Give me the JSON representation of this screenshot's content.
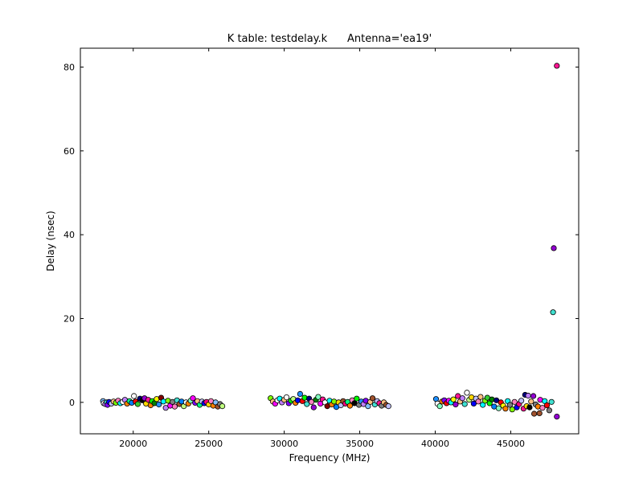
{
  "chart_data": {
    "type": "scatter",
    "title": "K table: testdelay.k      Antenna='ea19'",
    "xlabel": "Frequency (MHz)",
    "ylabel": "Delay (nsec)",
    "xlim": [
      16500,
      49500
    ],
    "ylim": [
      -7.5,
      84.5
    ],
    "xticks": [
      20000,
      25000,
      30000,
      35000,
      40000,
      45000
    ],
    "yticks": [
      0,
      20,
      40,
      60,
      80
    ],
    "xtick_labels": [
      "20000",
      "25000",
      "30000",
      "35000",
      "40000",
      "45000"
    ],
    "ytick_labels": [
      "0",
      "20",
      "40",
      "60",
      "80"
    ],
    "grid": false,
    "legend": "none",
    "marker_edge_color": "#000000",
    "colors": [
      "#00ffff",
      "#ff00ff",
      "#ffff00",
      "#ff0000",
      "#00ff00",
      "#0000ff",
      "#ff8000",
      "#8000ff",
      "#00ff80",
      "#ff0080",
      "#80ff00",
      "#0080ff",
      "#808080",
      "#800000",
      "#008000",
      "#000080",
      "#ffffff",
      "#000000",
      "#ff80c0",
      "#c0c0ff",
      "#ffc080",
      "#80c0ff",
      "#c080ff",
      "#80ffc0",
      "#c0ff80",
      "#40e0d0",
      "#a0522d",
      "#9400d3",
      "#ff1493",
      "#1e90ff",
      "#32cd32",
      "#ffd700"
    ],
    "points": [
      {
        "x": 18000,
        "y": 0.3,
        "color": "#80c0ff"
      },
      {
        "x": 18050,
        "y": -0.2,
        "color": "#ffffff"
      },
      {
        "x": 18150,
        "y": -0.4,
        "color": "#c080ff"
      },
      {
        "x": 18250,
        "y": 0.0,
        "color": "#40e0d0"
      },
      {
        "x": 18300,
        "y": -0.6,
        "color": "#8000ff"
      },
      {
        "x": 18400,
        "y": 0.1,
        "color": "#0000ff"
      },
      {
        "x": 18550,
        "y": -0.3,
        "color": "#c0c0ff"
      },
      {
        "x": 18700,
        "y": 0.2,
        "color": "#ffc080"
      },
      {
        "x": 18850,
        "y": -0.1,
        "color": "#80ff00"
      },
      {
        "x": 19000,
        "y": 0.4,
        "color": "#ff80c0"
      },
      {
        "x": 19150,
        "y": -0.2,
        "color": "#00ffff"
      },
      {
        "x": 19300,
        "y": 0.1,
        "color": "#ffffff"
      },
      {
        "x": 19450,
        "y": 0.6,
        "color": "#c080ff"
      },
      {
        "x": 19600,
        "y": -0.3,
        "color": "#ff8000"
      },
      {
        "x": 19750,
        "y": 0.3,
        "color": "#00ff80"
      },
      {
        "x": 19900,
        "y": -0.1,
        "color": "#0080ff"
      },
      {
        "x": 20050,
        "y": 1.5,
        "color": "#ffffff"
      },
      {
        "x": 20150,
        "y": 0.2,
        "color": "#ff0000"
      },
      {
        "x": 20300,
        "y": -0.4,
        "color": "#32cd32"
      },
      {
        "x": 20450,
        "y": 0.9,
        "color": "#000080"
      },
      {
        "x": 20600,
        "y": 0.5,
        "color": "#000000"
      },
      {
        "x": 20750,
        "y": 1.0,
        "color": "#9400d3"
      },
      {
        "x": 20850,
        "y": -0.3,
        "color": "#ffd700"
      },
      {
        "x": 21000,
        "y": 0.6,
        "color": "#ff1493"
      },
      {
        "x": 21150,
        "y": -0.7,
        "color": "#ff8000"
      },
      {
        "x": 21250,
        "y": 0.3,
        "color": "#00ff00"
      },
      {
        "x": 21400,
        "y": -0.2,
        "color": "#008000"
      },
      {
        "x": 21550,
        "y": 0.8,
        "color": "#ffff00"
      },
      {
        "x": 21700,
        "y": -0.5,
        "color": "#1e90ff"
      },
      {
        "x": 21850,
        "y": 1.1,
        "color": "#800000"
      },
      {
        "x": 22000,
        "y": 0.2,
        "color": "#00ffff"
      },
      {
        "x": 22150,
        "y": -1.3,
        "color": "#c080ff"
      },
      {
        "x": 22300,
        "y": 0.4,
        "color": "#80ff00"
      },
      {
        "x": 22450,
        "y": -0.8,
        "color": "#ff00ff"
      },
      {
        "x": 22600,
        "y": 0.1,
        "color": "#808080"
      },
      {
        "x": 22750,
        "y": -1.0,
        "color": "#ff80c0"
      },
      {
        "x": 22900,
        "y": 0.5,
        "color": "#40e0d0"
      },
      {
        "x": 23050,
        "y": -0.4,
        "color": "#a0522d"
      },
      {
        "x": 23200,
        "y": 0.2,
        "color": "#0080ff"
      },
      {
        "x": 23350,
        "y": -0.9,
        "color": "#c0ff80"
      },
      {
        "x": 23500,
        "y": 0.0,
        "color": "#ffffff"
      },
      {
        "x": 23650,
        "y": -0.3,
        "color": "#ff8000"
      },
      {
        "x": 23800,
        "y": 0.4,
        "color": "#80ffc0"
      },
      {
        "x": 23950,
        "y": 1.0,
        "color": "#ff00ff"
      },
      {
        "x": 24100,
        "y": -0.1,
        "color": "#8000ff"
      },
      {
        "x": 24250,
        "y": 0.3,
        "color": "#ffc080"
      },
      {
        "x": 24400,
        "y": -0.6,
        "color": "#00ff80"
      },
      {
        "x": 24550,
        "y": 0.2,
        "color": "#c0c0ff"
      },
      {
        "x": 24700,
        "y": -0.2,
        "color": "#0000ff"
      },
      {
        "x": 24850,
        "y": 0.1,
        "color": "#ff0080"
      },
      {
        "x": 25000,
        "y": -0.5,
        "color": "#ffd700"
      },
      {
        "x": 25150,
        "y": 0.3,
        "color": "#ff80c0"
      },
      {
        "x": 25300,
        "y": -0.8,
        "color": "#ff8000"
      },
      {
        "x": 25450,
        "y": 0.0,
        "color": "#80c0ff"
      },
      {
        "x": 25600,
        "y": -1.0,
        "color": "#a0522d"
      },
      {
        "x": 25750,
        "y": -0.4,
        "color": "#808080"
      },
      {
        "x": 25900,
        "y": -0.9,
        "color": "#c0ff80"
      },
      {
        "x": 29100,
        "y": 1.0,
        "color": "#80ff00"
      },
      {
        "x": 29250,
        "y": 0.2,
        "color": "#ffc080"
      },
      {
        "x": 29400,
        "y": -0.3,
        "color": "#ff00ff"
      },
      {
        "x": 29550,
        "y": 0.5,
        "color": "#ffffff"
      },
      {
        "x": 29700,
        "y": 0.9,
        "color": "#00ffff"
      },
      {
        "x": 29850,
        "y": 0.0,
        "color": "#c080ff"
      },
      {
        "x": 30000,
        "y": 0.6,
        "color": "#ffc080"
      },
      {
        "x": 30150,
        "y": 1.2,
        "color": "#ffffff"
      },
      {
        "x": 30300,
        "y": -0.2,
        "color": "#8000ff"
      },
      {
        "x": 30450,
        "y": 0.4,
        "color": "#00ff00"
      },
      {
        "x": 30600,
        "y": 0.8,
        "color": "#c0ff80"
      },
      {
        "x": 30750,
        "y": -0.1,
        "color": "#ff8000"
      },
      {
        "x": 30900,
        "y": 0.5,
        "color": "#0000ff"
      },
      {
        "x": 31050,
        "y": 2.0,
        "color": "#1e90ff"
      },
      {
        "x": 31200,
        "y": 0.3,
        "color": "#ff0000"
      },
      {
        "x": 31350,
        "y": 1.1,
        "color": "#00ff00"
      },
      {
        "x": 31500,
        "y": -0.4,
        "color": "#40e0d0"
      },
      {
        "x": 31650,
        "y": 0.9,
        "color": "#000080"
      },
      {
        "x": 31800,
        "y": 0.1,
        "color": "#ff80c0"
      },
      {
        "x": 31950,
        "y": -1.2,
        "color": "#9400d3"
      },
      {
        "x": 32100,
        "y": 0.6,
        "color": "#008000"
      },
      {
        "x": 32250,
        "y": 1.3,
        "color": "#80ffc0"
      },
      {
        "x": 32400,
        "y": -0.3,
        "color": "#ff00ff"
      },
      {
        "x": 32550,
        "y": 0.7,
        "color": "#ff1493"
      },
      {
        "x": 32700,
        "y": 0.0,
        "color": "#ffffff"
      },
      {
        "x": 32850,
        "y": -0.9,
        "color": "#800000"
      },
      {
        "x": 33000,
        "y": 0.4,
        "color": "#00ffff"
      },
      {
        "x": 33150,
        "y": -0.5,
        "color": "#ff8000"
      },
      {
        "x": 33300,
        "y": 0.2,
        "color": "#80ff00"
      },
      {
        "x": 33450,
        "y": -1.1,
        "color": "#0080ff"
      },
      {
        "x": 33600,
        "y": 0.0,
        "color": "#ffd700"
      },
      {
        "x": 33750,
        "y": -0.7,
        "color": "#c0c0ff"
      },
      {
        "x": 33900,
        "y": 0.3,
        "color": "#a0522d"
      },
      {
        "x": 34050,
        "y": -0.3,
        "color": "#ff0080"
      },
      {
        "x": 34200,
        "y": 0.1,
        "color": "#00ff80"
      },
      {
        "x": 34350,
        "y": -0.8,
        "color": "#ff8000"
      },
      {
        "x": 34500,
        "y": 0.5,
        "color": "#ff80c0"
      },
      {
        "x": 34650,
        "y": -0.2,
        "color": "#000000"
      },
      {
        "x": 34800,
        "y": 0.9,
        "color": "#00ff00"
      },
      {
        "x": 34950,
        "y": -0.6,
        "color": "#808080"
      },
      {
        "x": 35100,
        "y": 0.2,
        "color": "#1e90ff"
      },
      {
        "x": 35250,
        "y": -0.4,
        "color": "#c080ff"
      },
      {
        "x": 35400,
        "y": 0.4,
        "color": "#8000ff"
      },
      {
        "x": 35550,
        "y": -0.9,
        "color": "#80c0ff"
      },
      {
        "x": 35700,
        "y": 0.1,
        "color": "#ffc080"
      },
      {
        "x": 35850,
        "y": 1.0,
        "color": "#a0522d"
      },
      {
        "x": 36000,
        "y": -0.5,
        "color": "#40e0d0"
      },
      {
        "x": 36150,
        "y": 0.3,
        "color": "#c0c0ff"
      },
      {
        "x": 36300,
        "y": -0.2,
        "color": "#ff1493"
      },
      {
        "x": 36450,
        "y": -0.8,
        "color": "#808080"
      },
      {
        "x": 36600,
        "y": 0.0,
        "color": "#ffc080"
      },
      {
        "x": 36750,
        "y": -0.6,
        "color": "#a0522d"
      },
      {
        "x": 36900,
        "y": -0.9,
        "color": "#c0c0ff"
      },
      {
        "x": 40050,
        "y": 0.8,
        "color": "#1e90ff"
      },
      {
        "x": 40150,
        "y": -0.3,
        "color": "#ffffff"
      },
      {
        "x": 40300,
        "y": -0.9,
        "color": "#80ffc0"
      },
      {
        "x": 40450,
        "y": 0.2,
        "color": "#ff8000"
      },
      {
        "x": 40600,
        "y": 0.5,
        "color": "#8000ff"
      },
      {
        "x": 40750,
        "y": -0.2,
        "color": "#ff0000"
      },
      {
        "x": 40900,
        "y": 0.4,
        "color": "#ff00ff"
      },
      {
        "x": 41050,
        "y": 0.0,
        "color": "#00ffff"
      },
      {
        "x": 41200,
        "y": 0.7,
        "color": "#ffff00"
      },
      {
        "x": 41350,
        "y": -0.5,
        "color": "#9400d3"
      },
      {
        "x": 41500,
        "y": 1.5,
        "color": "#ff1493"
      },
      {
        "x": 41650,
        "y": 0.2,
        "color": "#ffc080"
      },
      {
        "x": 41800,
        "y": 1.0,
        "color": "#c080ff"
      },
      {
        "x": 41950,
        "y": -0.4,
        "color": "#40e0d0"
      },
      {
        "x": 42100,
        "y": 2.3,
        "color": "#ffffff"
      },
      {
        "x": 42250,
        "y": 0.6,
        "color": "#c0ff80"
      },
      {
        "x": 42400,
        "y": 1.2,
        "color": "#ffd700"
      },
      {
        "x": 42550,
        "y": -0.3,
        "color": "#0000ff"
      },
      {
        "x": 42700,
        "y": 0.9,
        "color": "#c0c0ff"
      },
      {
        "x": 42850,
        "y": 0.2,
        "color": "#ff80c0"
      },
      {
        "x": 43000,
        "y": 1.3,
        "color": "#ffc080"
      },
      {
        "x": 43150,
        "y": -0.6,
        "color": "#00ffff"
      },
      {
        "x": 43300,
        "y": 0.4,
        "color": "#80ff00"
      },
      {
        "x": 43450,
        "y": 1.1,
        "color": "#32cd32"
      },
      {
        "x": 43600,
        "y": -0.2,
        "color": "#00ff00"
      },
      {
        "x": 43750,
        "y": 0.7,
        "color": "#008000"
      },
      {
        "x": 43900,
        "y": -1.0,
        "color": "#0080ff"
      },
      {
        "x": 44050,
        "y": 0.5,
        "color": "#000080"
      },
      {
        "x": 44200,
        "y": -1.4,
        "color": "#80ffc0"
      },
      {
        "x": 44350,
        "y": 0.0,
        "color": "#ff0000"
      },
      {
        "x": 44500,
        "y": -0.8,
        "color": "#ffff00"
      },
      {
        "x": 44650,
        "y": -1.5,
        "color": "#ff8000"
      },
      {
        "x": 44800,
        "y": 0.3,
        "color": "#00ffff"
      },
      {
        "x": 44950,
        "y": -0.6,
        "color": "#808080"
      },
      {
        "x": 45100,
        "y": -1.7,
        "color": "#80ff00"
      },
      {
        "x": 45250,
        "y": 0.1,
        "color": "#ff80c0"
      },
      {
        "x": 45400,
        "y": -1.2,
        "color": "#0000ff"
      },
      {
        "x": 45550,
        "y": -0.4,
        "color": "#ff0080"
      },
      {
        "x": 45700,
        "y": 0.4,
        "color": "#c0c0ff"
      },
      {
        "x": 45850,
        "y": -1.5,
        "color": "#ff1493"
      },
      {
        "x": 45950,
        "y": 1.8,
        "color": "#000080"
      },
      {
        "x": 46050,
        "y": -0.9,
        "color": "#ffd700"
      },
      {
        "x": 46150,
        "y": 1.6,
        "color": "#c080ff"
      },
      {
        "x": 46250,
        "y": -1.2,
        "color": "#000000"
      },
      {
        "x": 46350,
        "y": 0.2,
        "color": "#ffc080"
      },
      {
        "x": 46500,
        "y": 1.5,
        "color": "#9400d3"
      },
      {
        "x": 46550,
        "y": -2.7,
        "color": "#a0522d"
      },
      {
        "x": 46650,
        "y": -0.5,
        "color": "#808080"
      },
      {
        "x": 46800,
        "y": -1.0,
        "color": "#ff8000"
      },
      {
        "x": 46900,
        "y": -2.6,
        "color": "#a0522d"
      },
      {
        "x": 46950,
        "y": 0.6,
        "color": "#ff00ff"
      },
      {
        "x": 47100,
        "y": -1.3,
        "color": "#ff80c0"
      },
      {
        "x": 47250,
        "y": 0.3,
        "color": "#00ffff"
      },
      {
        "x": 47400,
        "y": -0.7,
        "color": "#ff0000"
      },
      {
        "x": 47550,
        "y": -1.9,
        "color": "#808080"
      },
      {
        "x": 47700,
        "y": 0.1,
        "color": "#40e0d0"
      },
      {
        "x": 47800,
        "y": 21.5,
        "color": "#40e0d0"
      },
      {
        "x": 47850,
        "y": 36.8,
        "color": "#9400d3"
      },
      {
        "x": 48050,
        "y": 80.3,
        "color": "#ff1493"
      },
      {
        "x": 48050,
        "y": -3.4,
        "color": "#9400d3"
      }
    ]
  }
}
